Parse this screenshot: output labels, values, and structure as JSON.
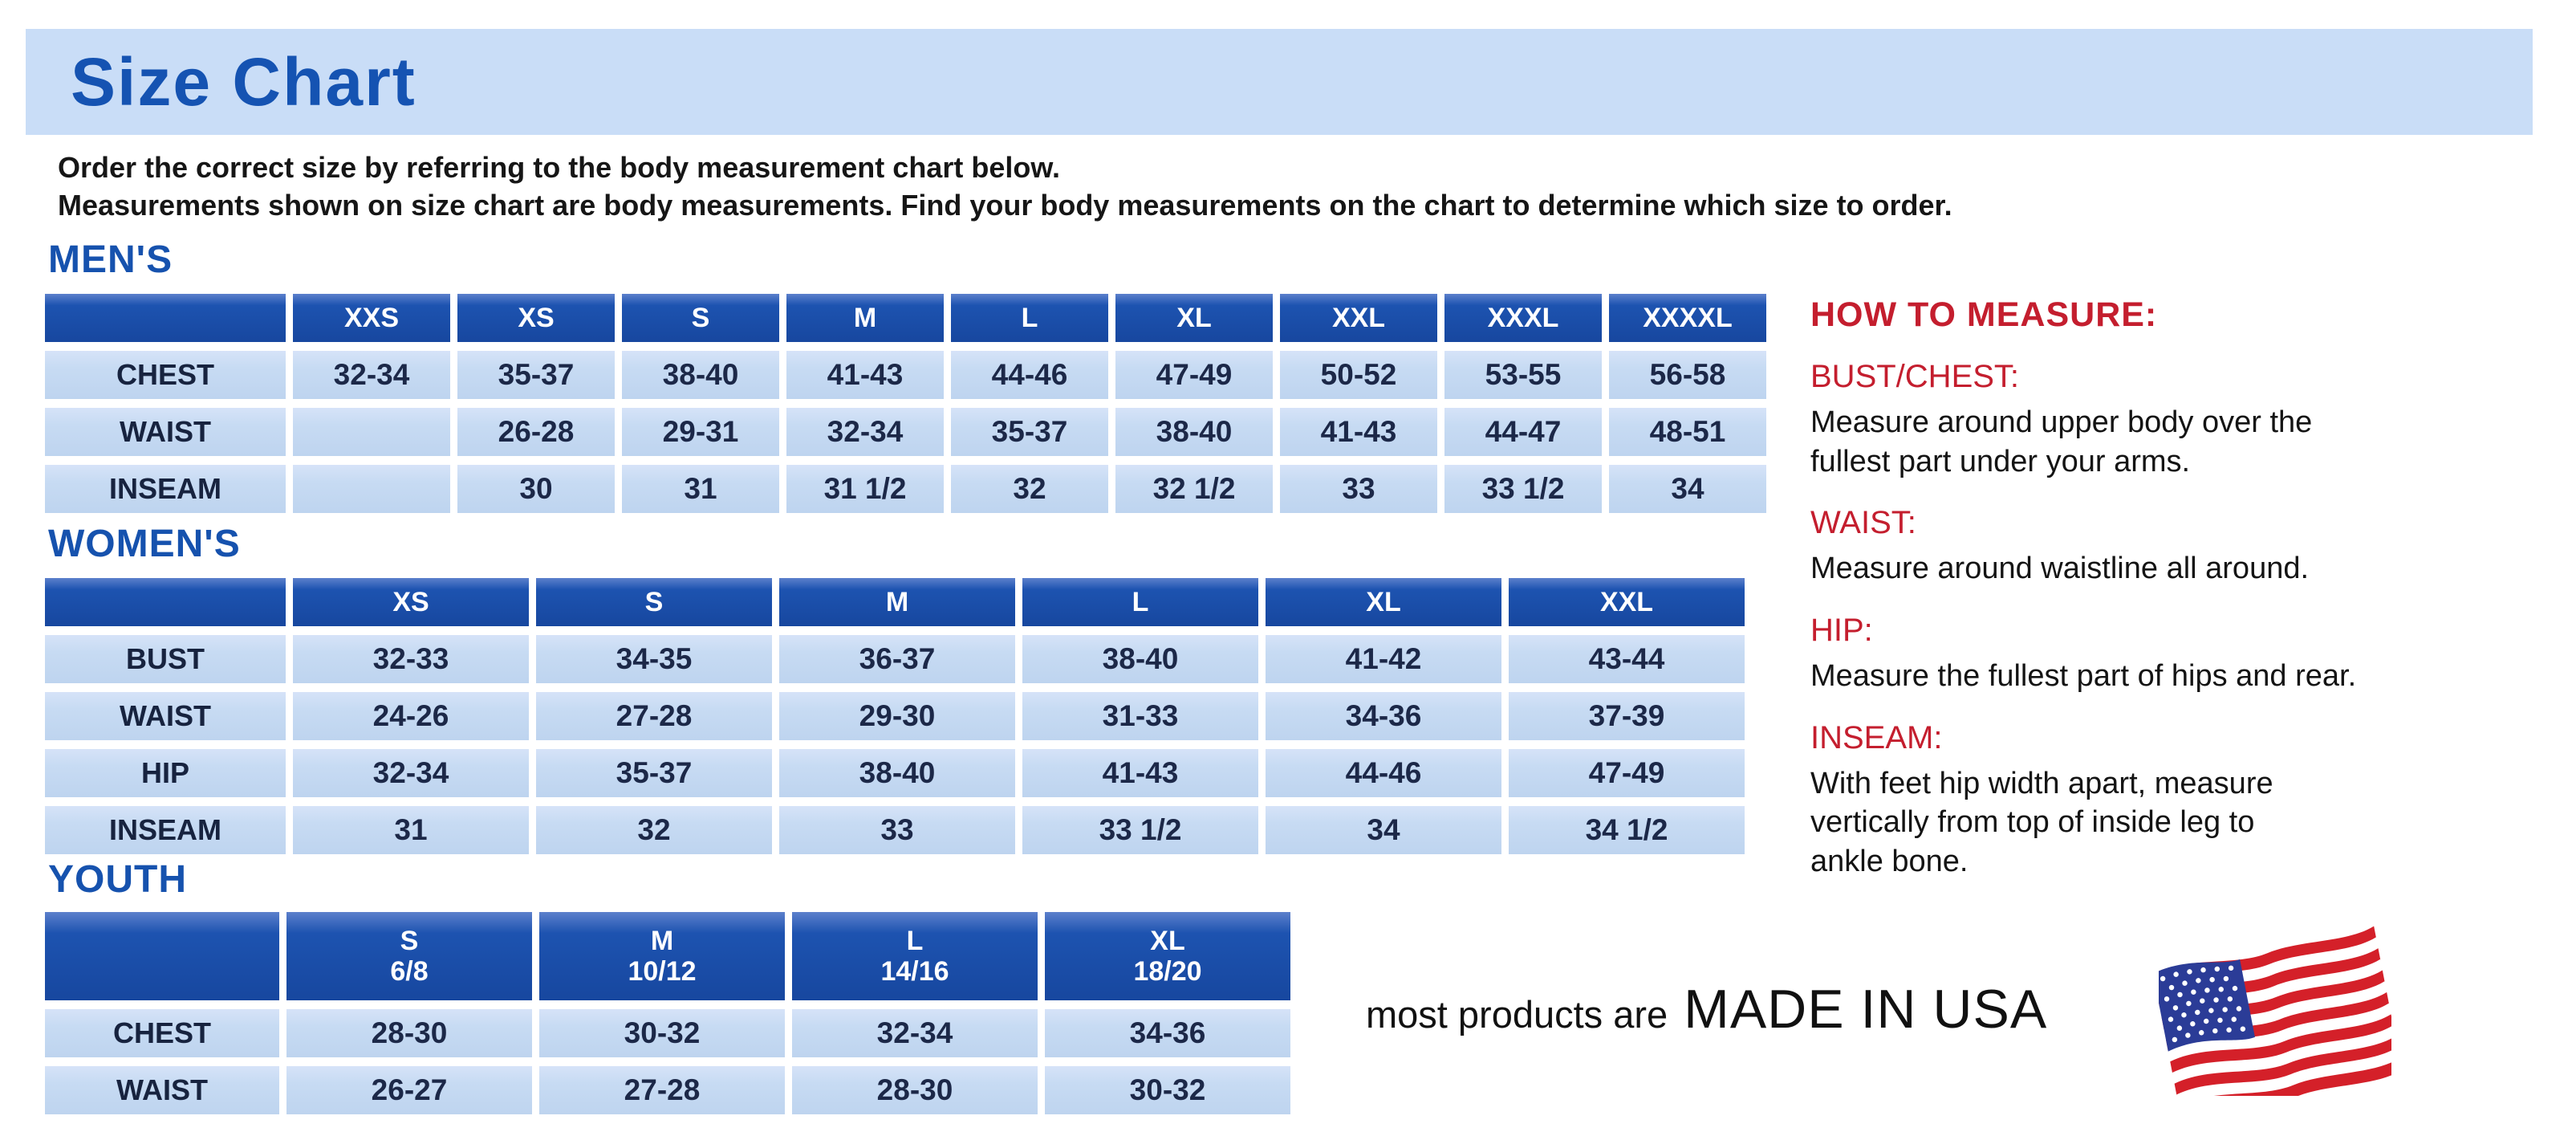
{
  "title": "Size Chart",
  "intro": {
    "line1": "Order the correct size by referring to the body measurement chart below.",
    "line2": "Measurements shown on size chart are body measurements.  Find your body measurements on the chart to determine which size to order."
  },
  "tables": [
    {
      "heading": "MEN'S",
      "columns": [
        "XXS",
        "XS",
        "S",
        "M",
        "L",
        "XL",
        "XXL",
        "XXXL",
        "XXXXL"
      ],
      "rows": [
        {
          "label": "CHEST",
          "values": [
            "32-34",
            "35-37",
            "38-40",
            "41-43",
            "44-46",
            "47-49",
            "50-52",
            "53-55",
            "56-58"
          ]
        },
        {
          "label": "WAIST",
          "values": [
            "",
            "26-28",
            "29-31",
            "32-34",
            "35-37",
            "38-40",
            "41-43",
            "44-47",
            "48-51"
          ]
        },
        {
          "label": "INSEAM",
          "values": [
            "",
            "30",
            "31",
            "31 1/2",
            "32",
            "32 1/2",
            "33",
            "33 1/2",
            "34"
          ]
        }
      ]
    },
    {
      "heading": "WOMEN'S",
      "columns": [
        "XS",
        "S",
        "M",
        "L",
        "XL",
        "XXL"
      ],
      "rows": [
        {
          "label": "BUST",
          "values": [
            "32-33",
            "34-35",
            "36-37",
            "38-40",
            "41-42",
            "43-44"
          ]
        },
        {
          "label": "WAIST",
          "values": [
            "24-26",
            "27-28",
            "29-30",
            "31-33",
            "34-36",
            "37-39"
          ]
        },
        {
          "label": "HIP",
          "values": [
            "32-34",
            "35-37",
            "38-40",
            "41-43",
            "44-46",
            "47-49"
          ]
        },
        {
          "label": "INSEAM",
          "values": [
            "31",
            "32",
            "33",
            "33 1/2",
            "34",
            "34 1/2"
          ]
        }
      ]
    },
    {
      "heading": "YOUTH",
      "columns": [
        "S\n6/8",
        "M\n10/12",
        "L\n14/16",
        "XL\n18/20"
      ],
      "rows": [
        {
          "label": "CHEST",
          "values": [
            "28-30",
            "30-32",
            "32-34",
            "34-36"
          ]
        },
        {
          "label": "WAIST",
          "values": [
            "26-27",
            "27-28",
            "28-30",
            "30-32"
          ]
        }
      ]
    }
  ],
  "how_to_measure": {
    "heading": "HOW TO MEASURE:",
    "items": [
      {
        "label": "BUST/CHEST:",
        "text": "Measure around upper body over the\nfullest part under your arms."
      },
      {
        "label": "WAIST:",
        "text": "Measure around waistline all around."
      },
      {
        "label": "HIP:",
        "text": "Measure the fullest part of hips and rear."
      },
      {
        "label": "INSEAM:",
        "text": "With feet hip width apart, measure\nvertically from top of inside leg to\nankle bone."
      }
    ]
  },
  "footer": {
    "prefix": "most products are",
    "emphasis": "MADE IN USA",
    "flag_icon": "us-flag-icon"
  },
  "colors": {
    "band_blue": "#c9ddf7",
    "heading_blue": "#1553b2",
    "table_header_blue": "#1d53b0",
    "cell_blue": "#c7dbf3",
    "accent_red": "#c41e2e",
    "flag_red": "#d42029",
    "flag_blue": "#2b3c97"
  }
}
